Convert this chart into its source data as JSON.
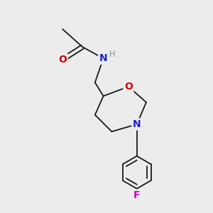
{
  "bg_color": "#ececec",
  "bond_color": "#1a1a1a",
  "bond_width": 1.3,
  "atom_colors": {
    "O": "#dd0000",
    "N_amide": "#2222cc",
    "N_morpholine": "#2222cc",
    "H": "#779988",
    "F": "#cc00cc",
    "C": "#1a1a1a"
  },
  "font_size_atoms": 10,
  "font_size_H": 8.5
}
